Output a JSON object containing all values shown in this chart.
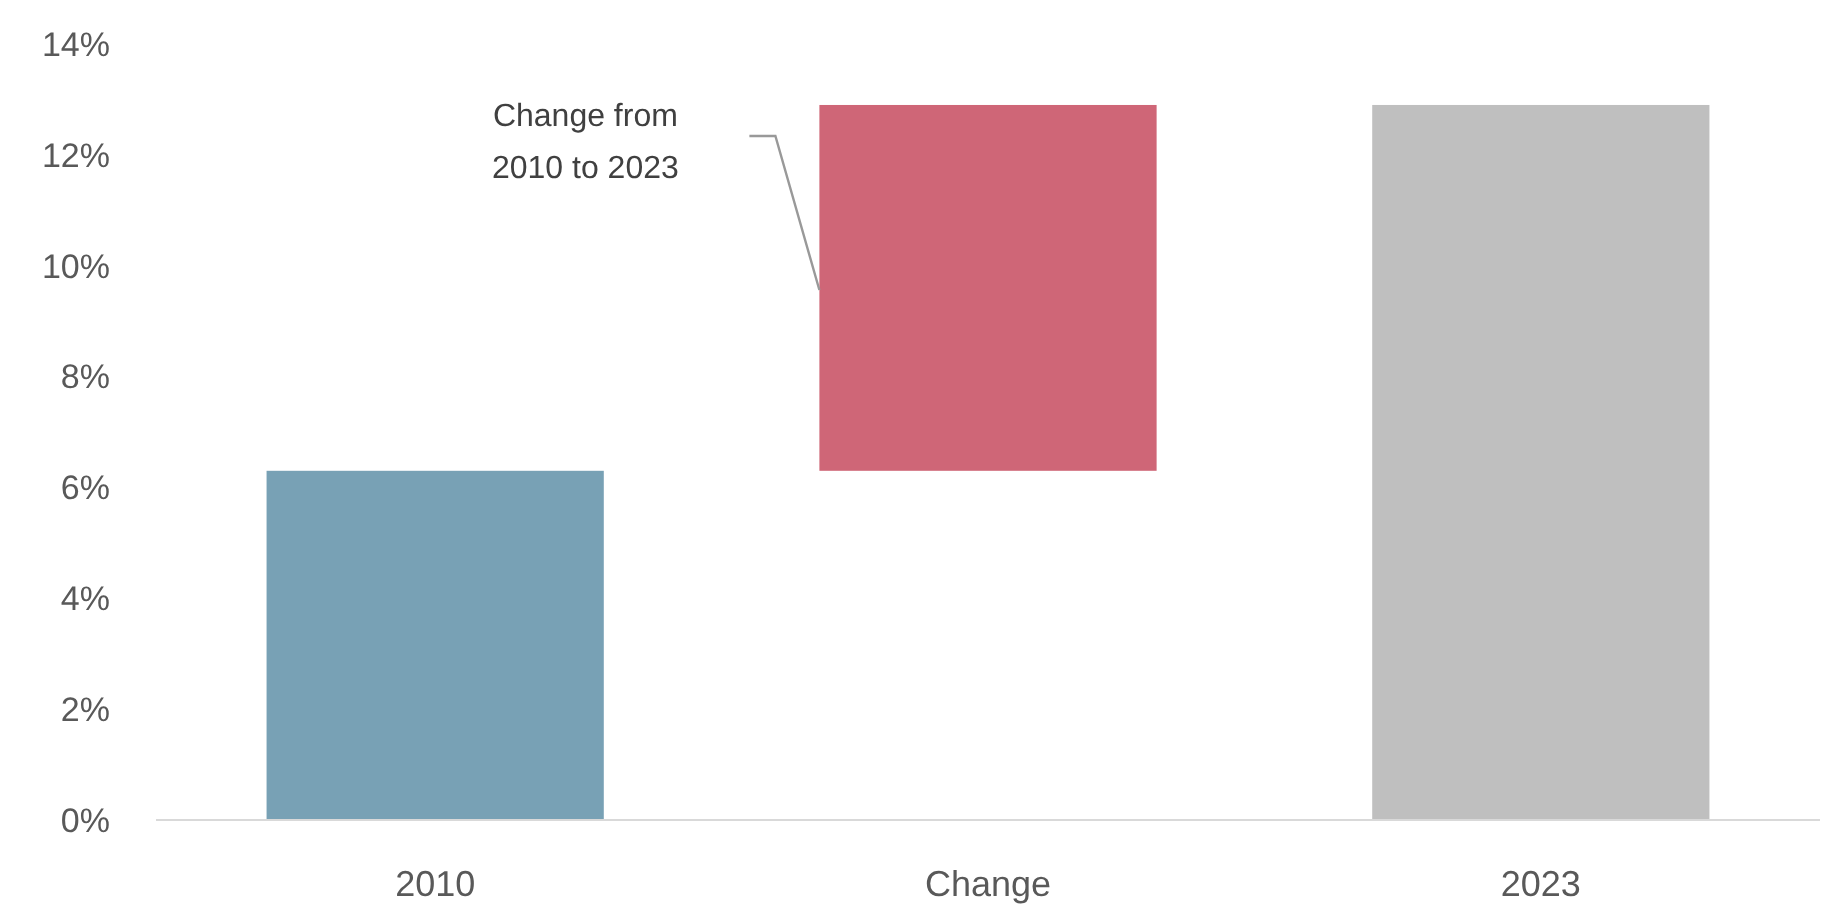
{
  "chart_data": {
    "type": "bar",
    "categories": [
      "2010",
      "Change",
      "2023"
    ],
    "values": [
      6.3,
      6.6,
      12.9
    ],
    "base": [
      0,
      6.3,
      0
    ],
    "colors": [
      "#78a1b5",
      "#cf6677",
      "#bfbfbf"
    ],
    "ylim": [
      0,
      14
    ],
    "yticks": [
      {
        "value": 0,
        "label": "0%"
      },
      {
        "value": 2,
        "label": "2%"
      },
      {
        "value": 4,
        "label": "4%"
      },
      {
        "value": 6,
        "label": "6%"
      },
      {
        "value": 8,
        "label": "8%"
      },
      {
        "value": 10,
        "label": "10%"
      },
      {
        "value": 12,
        "label": "12%"
      },
      {
        "value": 14,
        "label": "14%"
      }
    ],
    "annotations": [
      "Change from 2010 to 2023"
    ]
  }
}
